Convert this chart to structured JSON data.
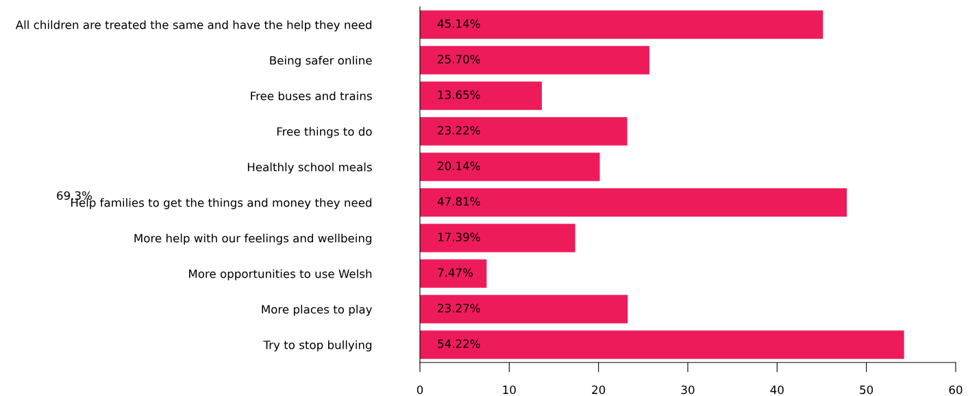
{
  "chart_data": {
    "type": "bar",
    "orientation": "horizontal",
    "categories": [
      "All children are treated the same and have the help they need",
      "Being safer online",
      "Free buses and trains",
      "Free things to do",
      "Healthly school meals",
      "Help families to get the things and money they need",
      "More help with our feelings and wellbeing",
      "More opportunities to use Welsh",
      "More places to play",
      "Try to stop bullying"
    ],
    "values": [
      45.14,
      25.7,
      13.65,
      23.22,
      20.14,
      47.81,
      17.39,
      7.47,
      23.27,
      54.22
    ],
    "value_labels": [
      "45.14%",
      "25.70%",
      "13.65%",
      "23.22%",
      "20.14%",
      "47.81%",
      "17.39%",
      "7.47%",
      "23.27%",
      "54.22%"
    ],
    "color": "#ee1b5b",
    "xlim": [
      0,
      60
    ],
    "xticks": [
      0,
      10,
      20,
      30,
      40,
      50,
      60
    ],
    "grid": false,
    "legend": false,
    "annotations": [
      "69.3%"
    ]
  }
}
